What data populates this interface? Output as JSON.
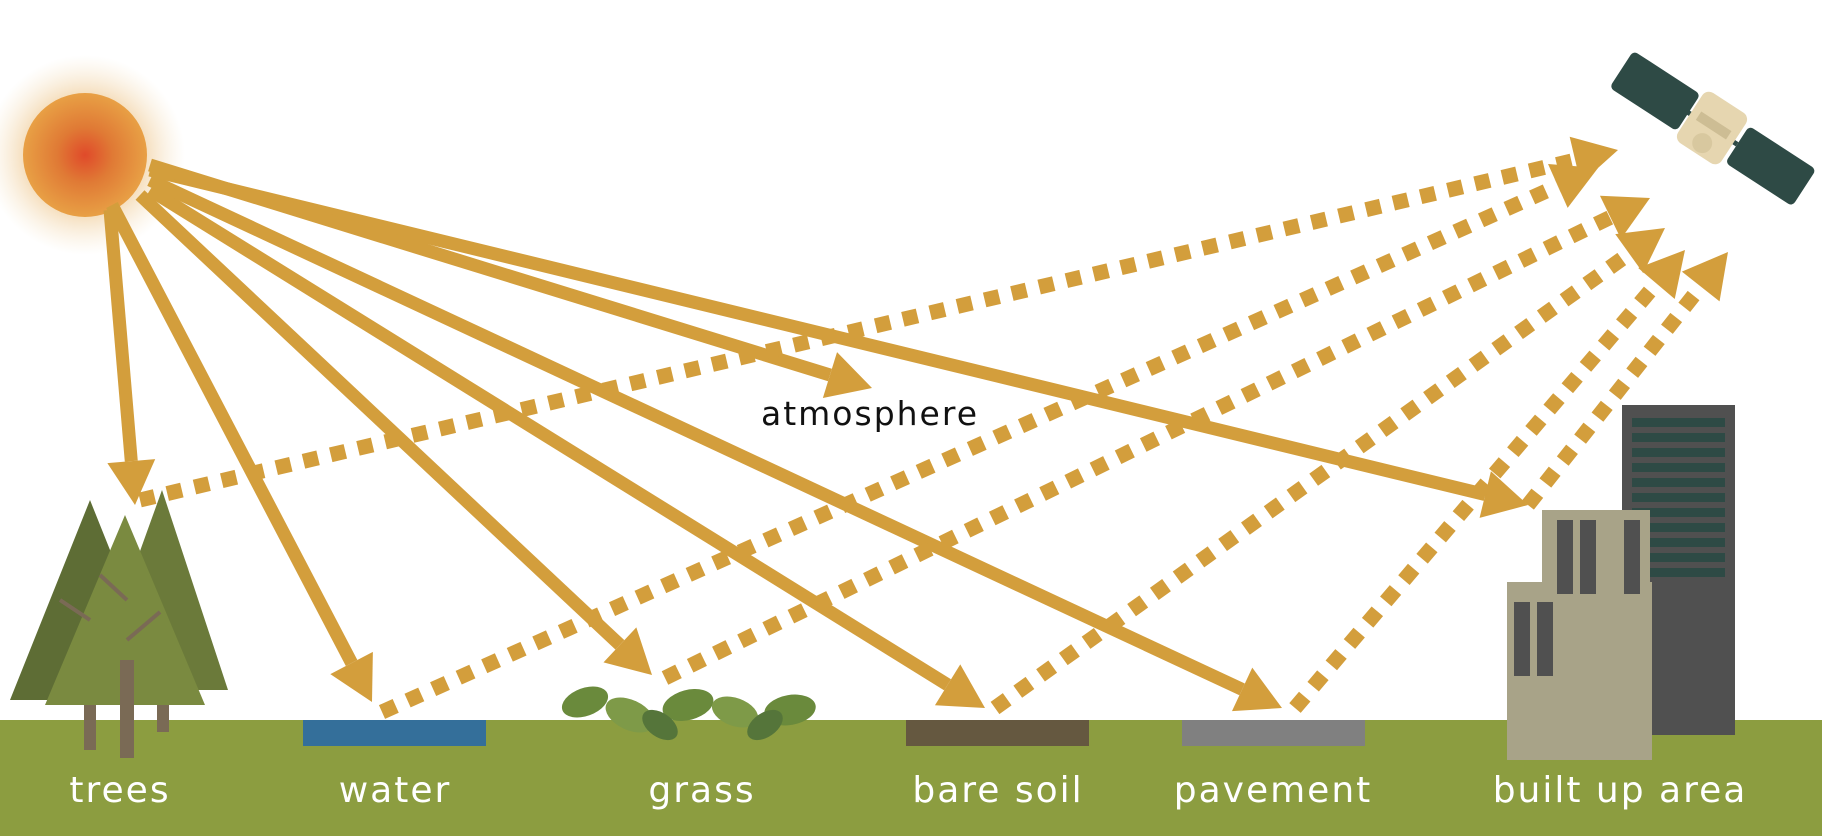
{
  "diagram": {
    "atmosphere_label": "atmosphere",
    "surfaces": [
      {
        "id": "trees",
        "label": "trees"
      },
      {
        "id": "water",
        "label": "water",
        "color": "#346f9a"
      },
      {
        "id": "grass",
        "label": "grass"
      },
      {
        "id": "bare-soil",
        "label": "bare soil",
        "color": "#655840"
      },
      {
        "id": "pavement",
        "label": "pavement",
        "color": "#808080"
      },
      {
        "id": "built-up-area",
        "label": "built up area"
      }
    ],
    "colors": {
      "arrow": "#d39e3c",
      "ground": "#8c9d40",
      "sun_core": "#e04a2a",
      "sun_outer": "#e8a045",
      "tree": "#6b7a3a",
      "satellite_panel": "#2e4a45",
      "satellite_body": "#e6d6b0",
      "building_light": "#a8a388",
      "building_dark": "#505050"
    },
    "icons": [
      "sun-icon",
      "satellite-icon",
      "trees-icon",
      "grass-icon",
      "buildings-icon"
    ]
  }
}
